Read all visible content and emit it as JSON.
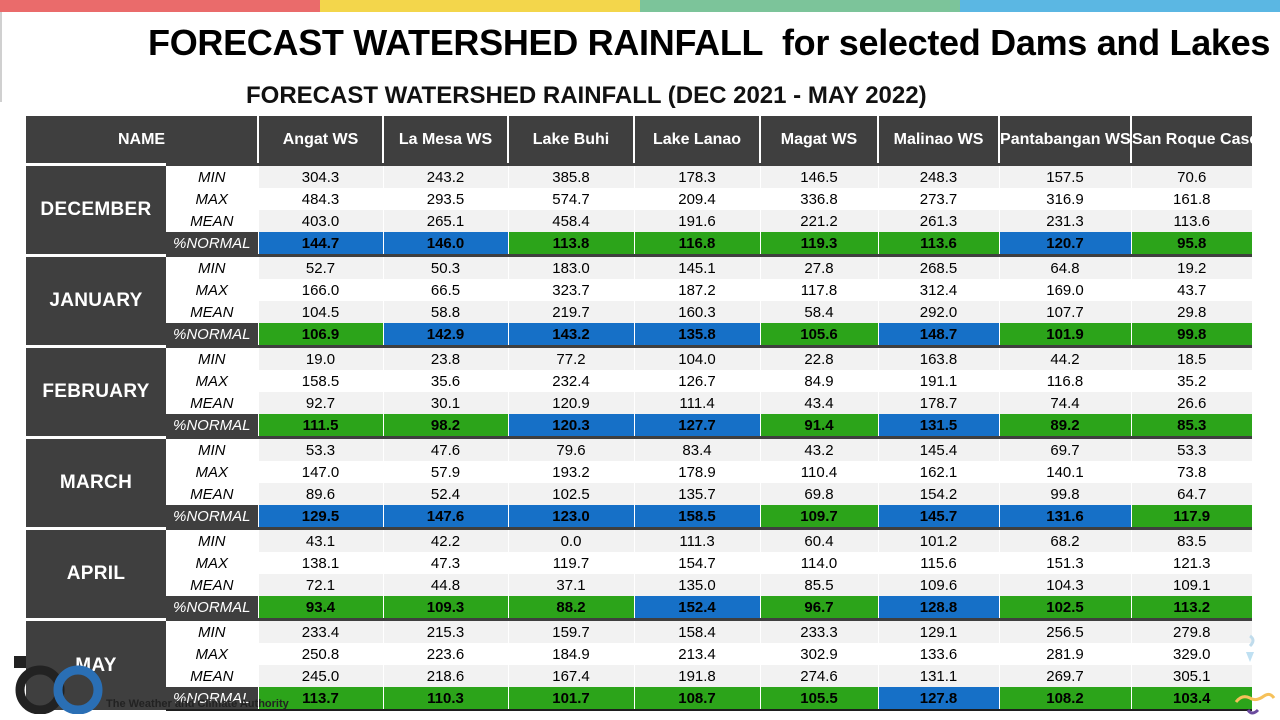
{
  "colors": {
    "bar_red": "#ea6b6b",
    "bar_yellow": "#f3d64b",
    "bar_green": "#7cc49a",
    "bar_blue": "#5bb7e3",
    "header_bg": "#3f3f3f",
    "normal_green": "#2ca41a",
    "normal_blue": "#1670c7"
  },
  "title": "FORECAST WATERSHED RAINFALL  for selected Dams and Lakes",
  "subtitle": "FORECAST WATERSHED RAINFALL (DEC 2021 - MAY 2022)",
  "table": {
    "name_header": "NAME",
    "columns": [
      "Angat WS",
      "La Mesa WS",
      "Lake Buhi",
      "Lake Lanao",
      "Magat WS",
      "Malinao WS",
      "Pantabangan WS",
      "San Roque Cascade WS"
    ],
    "stat_labels": [
      "MIN",
      "MAX",
      "MEAN",
      "%NORMAL"
    ],
    "months": [
      {
        "name": "DECEMBER",
        "min": [
          "304.3",
          "243.2",
          "385.8",
          "178.3",
          "146.5",
          "248.3",
          "157.5",
          "70.6"
        ],
        "max": [
          "484.3",
          "293.5",
          "574.7",
          "209.4",
          "336.8",
          "273.7",
          "316.9",
          "161.8"
        ],
        "mean": [
          "403.0",
          "265.1",
          "458.4",
          "191.6",
          "221.2",
          "261.3",
          "231.3",
          "113.6"
        ],
        "normal": [
          "144.7",
          "146.0",
          "113.8",
          "116.8",
          "119.3",
          "113.6",
          "120.7",
          "95.8"
        ],
        "normal_colors": [
          "blue",
          "blue",
          "green",
          "green",
          "green",
          "green",
          "blue",
          "green"
        ]
      },
      {
        "name": "JANUARY",
        "min": [
          "52.7",
          "50.3",
          "183.0",
          "145.1",
          "27.8",
          "268.5",
          "64.8",
          "19.2"
        ],
        "max": [
          "166.0",
          "66.5",
          "323.7",
          "187.2",
          "117.8",
          "312.4",
          "169.0",
          "43.7"
        ],
        "mean": [
          "104.5",
          "58.8",
          "219.7",
          "160.3",
          "58.4",
          "292.0",
          "107.7",
          "29.8"
        ],
        "normal": [
          "106.9",
          "142.9",
          "143.2",
          "135.8",
          "105.6",
          "148.7",
          "101.9",
          "99.8"
        ],
        "normal_colors": [
          "green",
          "blue",
          "blue",
          "blue",
          "green",
          "blue",
          "green",
          "green"
        ]
      },
      {
        "name": "FEBRUARY",
        "min": [
          "19.0",
          "23.8",
          "77.2",
          "104.0",
          "22.8",
          "163.8",
          "44.2",
          "18.5"
        ],
        "max": [
          "158.5",
          "35.6",
          "232.4",
          "126.7",
          "84.9",
          "191.1",
          "116.8",
          "35.2"
        ],
        "mean": [
          "92.7",
          "30.1",
          "120.9",
          "111.4",
          "43.4",
          "178.7",
          "74.4",
          "26.6"
        ],
        "normal": [
          "111.5",
          "98.2",
          "120.3",
          "127.7",
          "91.4",
          "131.5",
          "89.2",
          "85.3"
        ],
        "normal_colors": [
          "green",
          "green",
          "blue",
          "blue",
          "green",
          "blue",
          "green",
          "green"
        ]
      },
      {
        "name": "MARCH",
        "min": [
          "53.3",
          "47.6",
          "79.6",
          "83.4",
          "43.2",
          "145.4",
          "69.7",
          "53.3"
        ],
        "max": [
          "147.0",
          "57.9",
          "193.2",
          "178.9",
          "110.4",
          "162.1",
          "140.1",
          "73.8"
        ],
        "mean": [
          "89.6",
          "52.4",
          "102.5",
          "135.7",
          "69.8",
          "154.2",
          "99.8",
          "64.7"
        ],
        "normal": [
          "129.5",
          "147.6",
          "123.0",
          "158.5",
          "109.7",
          "145.7",
          "131.6",
          "117.9"
        ],
        "normal_colors": [
          "blue",
          "blue",
          "blue",
          "blue",
          "green",
          "blue",
          "blue",
          "green"
        ]
      },
      {
        "name": "APRIL",
        "min": [
          "43.1",
          "42.2",
          "0.0",
          "111.3",
          "60.4",
          "101.2",
          "68.2",
          "83.5"
        ],
        "max": [
          "138.1",
          "47.3",
          "119.7",
          "154.7",
          "114.0",
          "115.6",
          "151.3",
          "121.3"
        ],
        "mean": [
          "72.1",
          "44.8",
          "37.1",
          "135.0",
          "85.5",
          "109.6",
          "104.3",
          "109.1"
        ],
        "normal": [
          "93.4",
          "109.3",
          "88.2",
          "152.4",
          "96.7",
          "128.8",
          "102.5",
          "113.2"
        ],
        "normal_colors": [
          "green",
          "green",
          "green",
          "blue",
          "green",
          "blue",
          "green",
          "green"
        ]
      },
      {
        "name": "MAY",
        "min": [
          "233.4",
          "215.3",
          "159.7",
          "158.4",
          "233.3",
          "129.1",
          "256.5",
          "279.8"
        ],
        "max": [
          "250.8",
          "223.6",
          "184.9",
          "213.4",
          "302.9",
          "133.6",
          "281.9",
          "329.0"
        ],
        "mean": [
          "245.0",
          "218.6",
          "167.4",
          "191.8",
          "274.6",
          "131.1",
          "269.7",
          "305.1"
        ],
        "normal": [
          "113.7",
          "110.3",
          "101.7",
          "108.7",
          "105.5",
          "127.8",
          "108.2",
          "103.4"
        ],
        "normal_colors": [
          "green",
          "green",
          "green",
          "green",
          "green",
          "blue",
          "green",
          "green"
        ]
      }
    ]
  },
  "footer": {
    "org_tagline": "The Weather and Climate Authority",
    "logo_icon": "pagasa-logo-icon",
    "decoration_icon": "corner-decoration-icon"
  }
}
